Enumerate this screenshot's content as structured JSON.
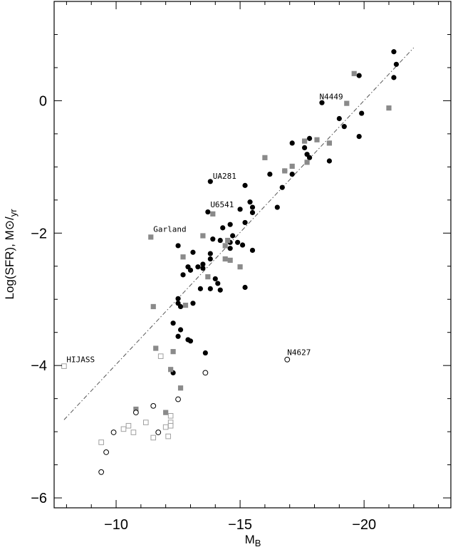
{
  "chart_data": {
    "type": "scatter",
    "title": "",
    "xlabel": "M",
    "xlabel_sub": "B",
    "ylabel": "Log(SFR), M⊙/",
    "ylabel_sub": "yr",
    "xlim": [
      -7.5,
      -23.5
    ],
    "ylim": [
      -6.15,
      1.5
    ],
    "x_reversed": true,
    "grid": false,
    "x_ticks": [
      -10,
      -15,
      -20
    ],
    "x_tick_labels": [
      "−10",
      "−15",
      "−20"
    ],
    "y_ticks": [
      0,
      -2,
      -4,
      -6
    ],
    "y_tick_labels": [
      "0",
      "−2",
      "−4",
      "−6"
    ],
    "fit_line": {
      "x": [
        -7.9,
        -22.0
      ],
      "y": [
        -4.82,
        0.8
      ],
      "style": "dash-dot",
      "color": "#555555"
    },
    "series": [
      {
        "marker": "filled-circle",
        "color": "#000000",
        "points": [
          [
            -21.2,
            0.74
          ],
          [
            -21.3,
            0.55
          ],
          [
            -21.2,
            0.35
          ],
          [
            -19.8,
            0.38
          ],
          [
            -18.3,
            -0.03
          ],
          [
            -19.0,
            -0.27
          ],
          [
            -19.9,
            -0.19
          ],
          [
            -19.2,
            -0.39
          ],
          [
            -19.8,
            -0.54
          ],
          [
            -17.8,
            -0.57
          ],
          [
            -17.6,
            -0.71
          ],
          [
            -17.1,
            -0.64
          ],
          [
            -17.7,
            -0.81
          ],
          [
            -17.8,
            -0.86
          ],
          [
            -18.6,
            -0.91
          ],
          [
            -16.8,
            -1.06
          ],
          [
            -16.2,
            -1.11
          ],
          [
            -17.1,
            -1.11
          ],
          [
            -15.2,
            -1.28
          ],
          [
            -16.7,
            -1.31
          ],
          [
            -13.8,
            -1.22
          ],
          [
            -15.4,
            -1.53
          ],
          [
            -15.5,
            -1.61
          ],
          [
            -16.5,
            -1.61
          ],
          [
            -15.0,
            -1.64
          ],
          [
            -15.5,
            -1.69
          ],
          [
            -13.7,
            -1.68
          ],
          [
            -15.2,
            -1.84
          ],
          [
            -14.6,
            -1.87
          ],
          [
            -14.3,
            -1.92
          ],
          [
            -14.7,
            -2.04
          ],
          [
            -14.9,
            -2.14
          ],
          [
            -14.2,
            -2.11
          ],
          [
            -14.6,
            -2.14
          ],
          [
            -15.1,
            -2.18
          ],
          [
            -14.6,
            -2.23
          ],
          [
            -15.5,
            -2.26
          ],
          [
            -13.9,
            -2.09
          ],
          [
            -12.5,
            -2.19
          ],
          [
            -13.1,
            -2.29
          ],
          [
            -13.8,
            -2.31
          ],
          [
            -13.8,
            -2.39
          ],
          [
            -13.5,
            -2.47
          ],
          [
            -13.3,
            -2.51
          ],
          [
            -13.5,
            -2.53
          ],
          [
            -12.9,
            -2.51
          ],
          [
            -13.0,
            -2.56
          ],
          [
            -12.7,
            -2.63
          ],
          [
            -14.0,
            -2.69
          ],
          [
            -14.1,
            -2.76
          ],
          [
            -13.4,
            -2.84
          ],
          [
            -13.8,
            -2.84
          ],
          [
            -14.2,
            -2.86
          ],
          [
            -15.2,
            -2.82
          ],
          [
            -12.5,
            -2.99
          ],
          [
            -12.5,
            -3.06
          ],
          [
            -13.1,
            -3.06
          ],
          [
            -12.6,
            -3.11
          ],
          [
            -12.3,
            -3.36
          ],
          [
            -12.6,
            -3.46
          ],
          [
            -12.5,
            -3.56
          ],
          [
            -12.9,
            -3.61
          ],
          [
            -13.0,
            -3.63
          ],
          [
            -13.6,
            -3.81
          ],
          [
            -12.3,
            -4.11
          ]
        ]
      },
      {
        "marker": "filled-square",
        "color": "#8a8a8a",
        "points": [
          [
            -19.6,
            0.41
          ],
          [
            -19.3,
            -0.04
          ],
          [
            -21.0,
            -0.11
          ],
          [
            -18.1,
            -0.59
          ],
          [
            -17.6,
            -0.61
          ],
          [
            -18.6,
            -0.64
          ],
          [
            -17.7,
            -0.93
          ],
          [
            -16.0,
            -0.86
          ],
          [
            -17.1,
            -0.99
          ],
          [
            -16.8,
            -1.06
          ],
          [
            -13.9,
            -1.71
          ],
          [
            -13.5,
            -2.04
          ],
          [
            -11.4,
            -2.06
          ],
          [
            -14.5,
            -2.11
          ],
          [
            -14.4,
            -2.19
          ],
          [
            -12.7,
            -2.36
          ],
          [
            -14.6,
            -2.41
          ],
          [
            -14.4,
            -2.39
          ],
          [
            -15.0,
            -2.51
          ],
          [
            -13.7,
            -2.66
          ],
          [
            -12.8,
            -3.09
          ],
          [
            -11.5,
            -3.11
          ],
          [
            -11.6,
            -3.74
          ],
          [
            -12.3,
            -3.79
          ],
          [
            -12.2,
            -4.06
          ],
          [
            -12.6,
            -4.34
          ],
          [
            -10.8,
            -4.66
          ],
          [
            -12.0,
            -4.71
          ]
        ]
      },
      {
        "marker": "open-circle",
        "color": "#000000",
        "points": [
          [
            -16.9,
            -3.91
          ],
          [
            -13.6,
            -4.11
          ],
          [
            -12.5,
            -4.51
          ],
          [
            -11.5,
            -4.61
          ],
          [
            -10.8,
            -4.71
          ],
          [
            -9.9,
            -5.01
          ],
          [
            -11.7,
            -5.01
          ],
          [
            -9.6,
            -5.31
          ],
          [
            -9.4,
            -5.61
          ]
        ]
      },
      {
        "marker": "open-square",
        "color": "#a0a0a0",
        "points": [
          [
            -7.9,
            -4.01
          ],
          [
            -11.8,
            -3.86
          ],
          [
            -12.2,
            -4.76
          ],
          [
            -12.2,
            -4.86
          ],
          [
            -11.2,
            -4.86
          ],
          [
            -10.5,
            -4.91
          ],
          [
            -12.2,
            -4.91
          ],
          [
            -12.0,
            -4.93
          ],
          [
            -10.7,
            -5.01
          ],
          [
            -10.3,
            -4.96
          ],
          [
            -11.5,
            -5.09
          ],
          [
            -12.1,
            -5.07
          ],
          [
            -9.4,
            -5.16
          ]
        ]
      }
    ],
    "annotations": [
      {
        "text": "N4449",
        "x": -18.2,
        "y": 0.02
      },
      {
        "text": "UA281",
        "x": -13.9,
        "y": -1.18
      },
      {
        "text": "U6541",
        "x": -13.8,
        "y": -1.61
      },
      {
        "text": "Garland",
        "x": -11.5,
        "y": -1.98
      },
      {
        "text": "HIJASS",
        "x": -8.0,
        "y": -3.95
      },
      {
        "text": "N4627",
        "x": -16.9,
        "y": -3.84
      }
    ]
  }
}
